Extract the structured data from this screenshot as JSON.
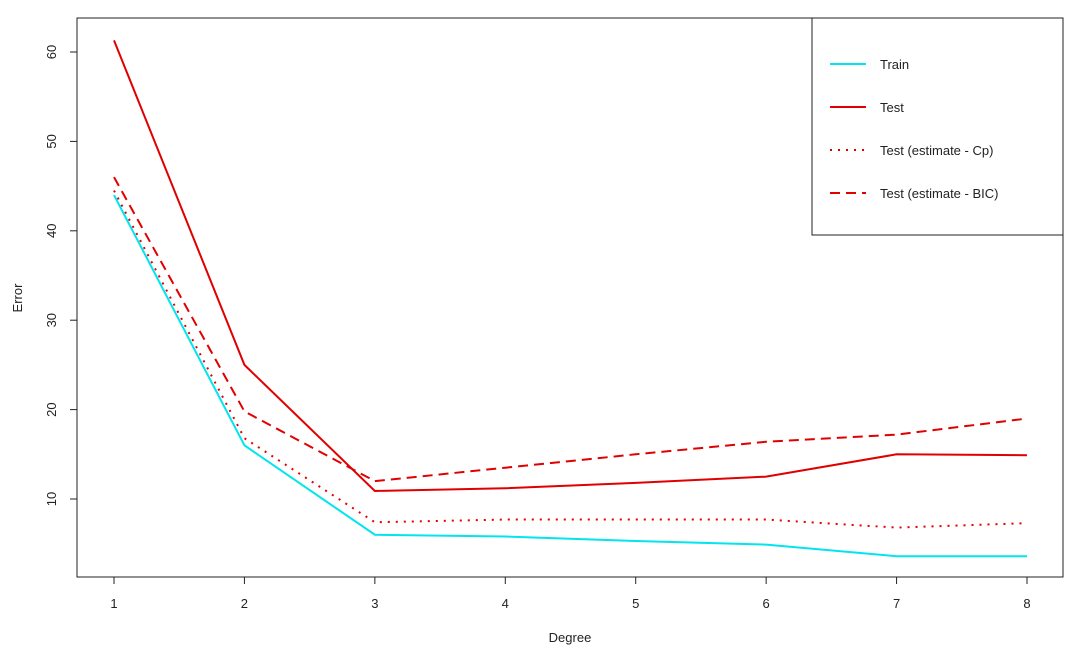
{
  "chart_data": {
    "type": "line",
    "title": "",
    "xlabel": "Degree",
    "ylabel": "Error",
    "x": [
      1,
      2,
      3,
      4,
      5,
      6,
      7,
      8
    ],
    "xticks": [
      "1",
      "2",
      "3",
      "4",
      "5",
      "6",
      "7",
      "8"
    ],
    "yticks": [
      "10",
      "20",
      "30",
      "40",
      "50",
      "60"
    ],
    "xlim": [
      0.72,
      8.27
    ],
    "ylim": [
      1.3,
      63.8
    ],
    "grid": false,
    "legend_position": "top-right",
    "series": [
      {
        "name": "Train",
        "color": "#00e5ee",
        "style": "solid",
        "values": [
          44.0,
          16.0,
          6.0,
          5.8,
          5.3,
          4.9,
          3.6,
          3.6
        ]
      },
      {
        "name": "Test",
        "color": "#e00000",
        "style": "solid",
        "values": [
          61.3,
          25.0,
          10.9,
          11.2,
          11.8,
          12.5,
          15.0,
          14.9
        ]
      },
      {
        "name": "Test (estimate - Cp)",
        "color": "#e00000",
        "style": "dotted",
        "values": [
          44.5,
          16.8,
          7.4,
          7.7,
          7.7,
          7.7,
          6.8,
          7.3
        ]
      },
      {
        "name": "Test (estimate - BIC)",
        "color": "#e00000",
        "style": "dashed",
        "values": [
          46.0,
          19.8,
          12.0,
          13.5,
          15.0,
          16.4,
          17.2,
          19.0
        ]
      }
    ]
  }
}
